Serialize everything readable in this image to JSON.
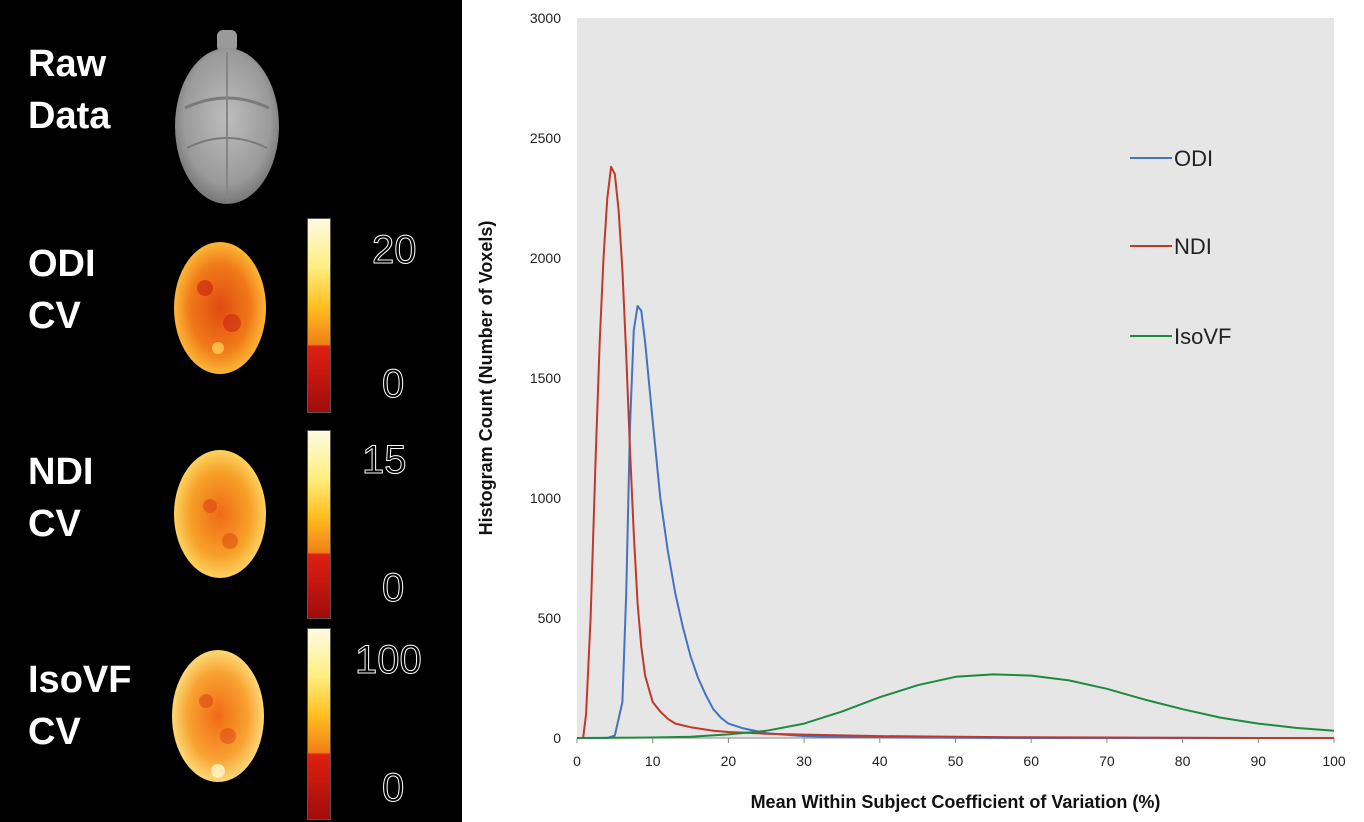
{
  "left_panel": {
    "rows": [
      {
        "label_line1": "Raw",
        "label_line2": "Data"
      },
      {
        "label_line1": "ODI",
        "label_line2": "CV",
        "cb_max": "20",
        "cb_min": "0"
      },
      {
        "label_line1": "NDI",
        "label_line2": "CV",
        "cb_max": "15",
        "cb_min": "0"
      },
      {
        "label_line1": "IsoVF",
        "label_line2": "CV",
        "cb_max": "100",
        "cb_min": "0"
      }
    ]
  },
  "chart_data": {
    "type": "line",
    "title": "",
    "xlabel": "Mean Within Subject Coefficient of Variation (%)",
    "ylabel": "Histogram Count (Number of Voxels)",
    "xlim": [
      0,
      100
    ],
    "ylim": [
      0,
      3000
    ],
    "xticks": [
      "0",
      "10",
      "20",
      "30",
      "40",
      "50",
      "60",
      "70",
      "80",
      "90",
      "100"
    ],
    "yticks": [
      "0",
      "500",
      "1000",
      "1500",
      "2000",
      "2500",
      "3000"
    ],
    "grid": false,
    "background": "#e6e6e6",
    "legend_position": "right",
    "series": [
      {
        "name": "ODI",
        "color": "#4472c4",
        "x": [
          0,
          4,
          5,
          6,
          6.5,
          7,
          7.5,
          8,
          8.5,
          9,
          10,
          11,
          12,
          13,
          14,
          15,
          16,
          17,
          18,
          19,
          20,
          22,
          25,
          30,
          35,
          40,
          50,
          60,
          70,
          80,
          90,
          100
        ],
        "y": [
          0,
          0,
          10,
          150,
          600,
          1300,
          1700,
          1800,
          1780,
          1650,
          1320,
          1000,
          780,
          600,
          460,
          340,
          250,
          180,
          120,
          85,
          60,
          40,
          20,
          8,
          4,
          2,
          1,
          0,
          0,
          0,
          0,
          0
        ]
      },
      {
        "name": "NDI",
        "color": "#c0392b",
        "x": [
          0,
          0.8,
          1.2,
          1.8,
          2.5,
          3,
          3.5,
          4,
          4.5,
          5,
          5.5,
          6,
          6.5,
          7,
          7.5,
          8,
          8.5,
          9,
          10,
          11,
          12,
          13,
          15,
          18,
          20,
          25,
          30,
          40,
          50,
          60,
          70,
          80,
          90,
          100
        ],
        "y": [
          0,
          0,
          100,
          500,
          1200,
          1650,
          2000,
          2250,
          2380,
          2350,
          2200,
          1950,
          1600,
          1200,
          850,
          560,
          380,
          260,
          150,
          110,
          80,
          60,
          45,
          30,
          25,
          18,
          14,
          8,
          5,
          3,
          2,
          1,
          0,
          0
        ]
      },
      {
        "name": "IsoVF",
        "color": "#1e8b3c",
        "x": [
          0,
          10,
          15,
          20,
          25,
          30,
          35,
          40,
          45,
          50,
          55,
          60,
          65,
          70,
          75,
          80,
          85,
          90,
          95,
          100
        ],
        "y": [
          0,
          2,
          5,
          15,
          30,
          60,
          110,
          170,
          220,
          255,
          265,
          260,
          240,
          205,
          160,
          120,
          85,
          60,
          42,
          30
        ]
      }
    ]
  },
  "colors": {
    "plot_bg": "#e6e6e6",
    "odi": "#4472c4",
    "ndi": "#c0392b",
    "isovf": "#1e8b3c"
  }
}
